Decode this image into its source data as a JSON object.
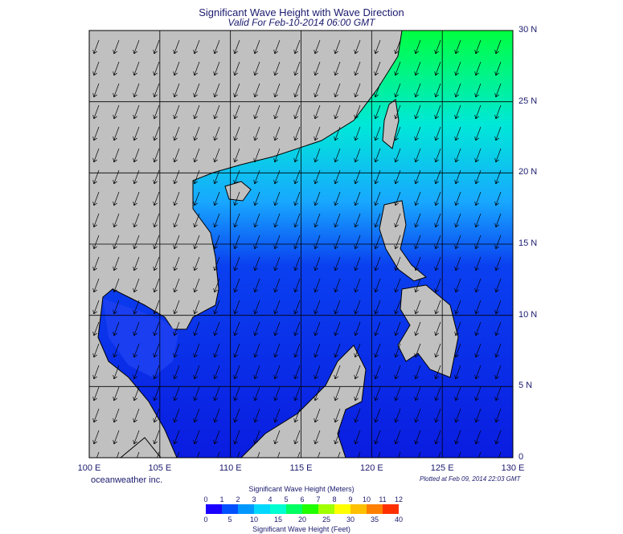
{
  "title": "Significant Wave Height with Wave Direction",
  "subtitle": "Valid For Feb-10-2014 06:00 GMT",
  "map": {
    "lon_range": [
      100,
      130
    ],
    "lat_range": [
      0,
      30
    ],
    "lat_labels": [
      {
        "value": 30,
        "text": "30 N"
      },
      {
        "value": 25,
        "text": "25 N"
      },
      {
        "value": 20,
        "text": "20 N"
      },
      {
        "value": 15,
        "text": "15 N"
      },
      {
        "value": 10,
        "text": "10 N"
      },
      {
        "value": 5,
        "text": "5 N"
      },
      {
        "value": 0,
        "text": "0"
      }
    ],
    "lon_labels": [
      {
        "value": 100,
        "text": "100 E"
      },
      {
        "value": 105,
        "text": "105 E"
      },
      {
        "value": 110,
        "text": "110 E"
      },
      {
        "value": 115,
        "text": "115 E"
      },
      {
        "value": 120,
        "text": "120 E"
      },
      {
        "value": 125,
        "text": "125 E"
      },
      {
        "value": 130,
        "text": "130 E"
      }
    ],
    "colors": {
      "land": "#c0c0c0",
      "sea_low": "#0a1cf0",
      "sea_mid": "#1e8cff",
      "sea_high": "#00e8e8",
      "sea_peak": "#00ff40",
      "grid": "#000000"
    }
  },
  "brand": "oceanweather inc.",
  "plotted": "Plotted at Feb 09, 2014 22:03 GMT",
  "legend": {
    "meters_title": "Significant Wave Height (Meters)",
    "feet_title": "Significant Wave Height (Feet)",
    "meters_ticks": [
      "0",
      "1",
      "2",
      "3",
      "4",
      "5",
      "6",
      "7",
      "8",
      "9",
      "10",
      "11",
      "12"
    ],
    "feet_ticks": [
      "0",
      "5",
      "10",
      "15",
      "20",
      "25",
      "30",
      "35",
      "40"
    ],
    "colors": [
      "#1a00ff",
      "#0050ff",
      "#0098ff",
      "#00d8ff",
      "#00ffd0",
      "#00ff60",
      "#20ff00",
      "#a0ff00",
      "#ffff00",
      "#ffc000",
      "#ff8000",
      "#ff3000"
    ]
  }
}
